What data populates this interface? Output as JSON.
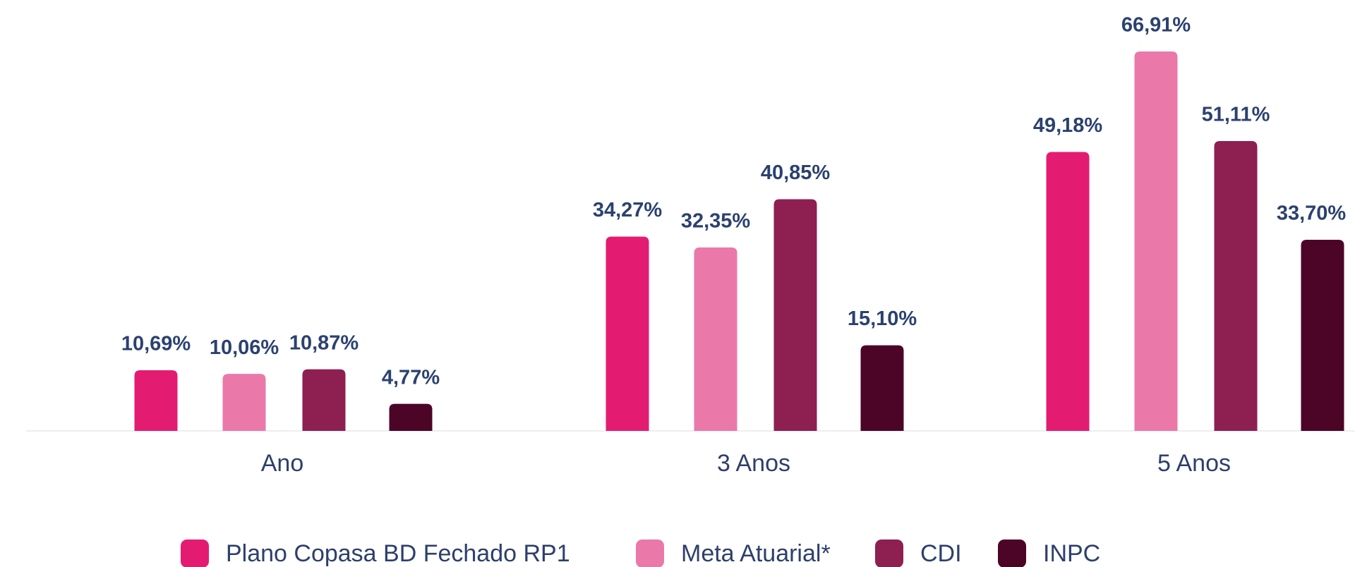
{
  "chart_data": {
    "type": "bar",
    "categories": [
      "Ano",
      "3 Anos",
      "5 Anos"
    ],
    "series": [
      {
        "name": "Plano Copasa BD Fechado RP1",
        "color": "#e31c72",
        "values": [
          10.69,
          34.27,
          49.18
        ],
        "value_labels": [
          "10,69%",
          "34,27%",
          "49,18%"
        ]
      },
      {
        "name": "Meta Atuarial*",
        "color": "#ea79a9",
        "values": [
          10.06,
          32.35,
          66.91
        ],
        "value_labels": [
          "10,06%",
          "32,35%",
          "66,91%"
        ]
      },
      {
        "name": "CDI",
        "color": "#8e1f51",
        "values": [
          10.87,
          40.85,
          51.11
        ],
        "value_labels": [
          "10,87%",
          "40,85%",
          "51,11%"
        ]
      },
      {
        "name": "INPC",
        "color": "#4c0427",
        "values": [
          4.77,
          15.1,
          33.7
        ],
        "value_labels": [
          "4,77%",
          "15,10%",
          "33,70%"
        ]
      }
    ],
    "legend": "bottom"
  }
}
